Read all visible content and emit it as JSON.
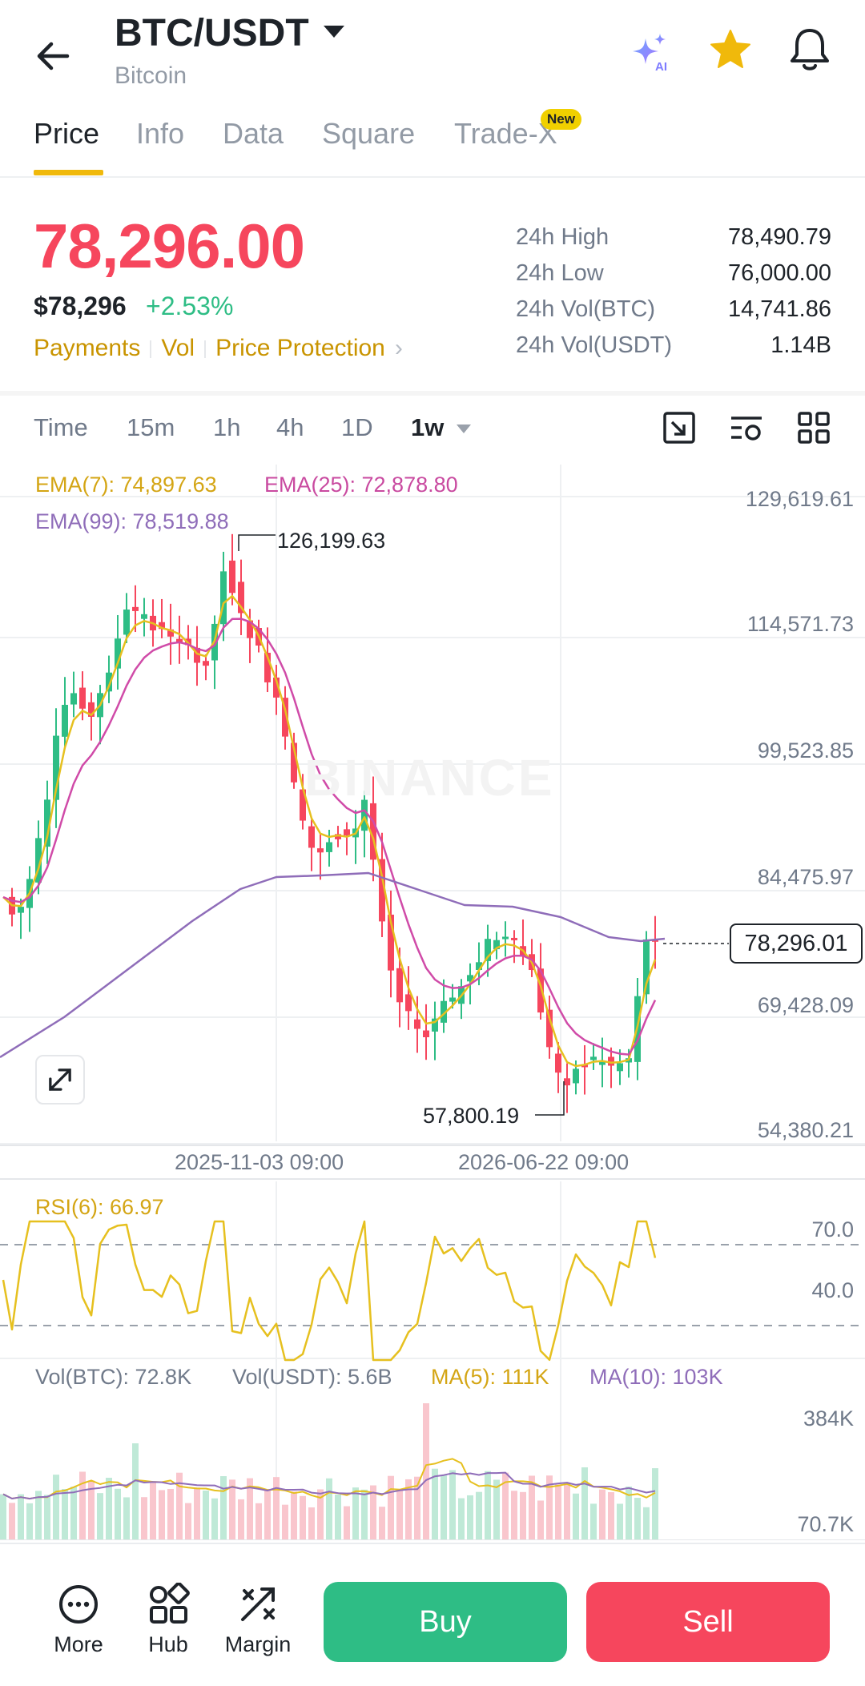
{
  "header": {
    "pair": "BTC/USDT",
    "subtitle": "Bitcoin",
    "icons": [
      "back-arrow-icon",
      "ai-sparkle-icon",
      "star-icon",
      "bell-icon"
    ]
  },
  "tabs": [
    {
      "label": "Price",
      "active": true
    },
    {
      "label": "Info",
      "active": false
    },
    {
      "label": "Data",
      "active": false
    },
    {
      "label": "Square",
      "active": false
    },
    {
      "label": "Trade-X",
      "active": false,
      "badge": "New"
    }
  ],
  "price": {
    "last": "78,296.00",
    "usd": "$78,296",
    "change_pct": "+2.53%",
    "links": [
      "Payments",
      "Vol",
      "Price Protection"
    ]
  },
  "stats": [
    {
      "label": "24h High",
      "value": "78,490.79"
    },
    {
      "label": "24h Low",
      "value": "76,000.00"
    },
    {
      "label": "24h Vol(BTC)",
      "value": "14,741.86"
    },
    {
      "label": "24h Vol(USDT)",
      "value": "1.14B"
    }
  ],
  "intervals": [
    "Time",
    "15m",
    "1h",
    "4h",
    "1D",
    "1w"
  ],
  "active_interval": "1w",
  "chart": {
    "ema7": "EMA(7): 74,897.63",
    "ema25": "EMA(25): 72,878.80",
    "ema99": "EMA(99): 78,519.88",
    "y_axis": [
      "129,619.61",
      "114,571.73",
      "99,523.85",
      "84,475.97",
      "69,428.09",
      "54,380.21"
    ],
    "high_marker": "126,199.63",
    "low_marker": "57,800.19",
    "current_price_tag": "78,296.01",
    "dates": [
      "2025-11-03 09:00",
      "2026-06-22 09:00"
    ],
    "watermark": "BINANCE",
    "rsi_label": "RSI(6): 66.97",
    "rsi_levels": [
      "70.0",
      "40.0"
    ],
    "vol_btc": "Vol(BTC): 72.8K",
    "vol_usdt": "Vol(USDT): 5.6B",
    "vol_ma5": "MA(5): 111K",
    "vol_ma10": "MA(10): 103K",
    "vol_axis": [
      "384K",
      "70.7K"
    ]
  },
  "colors": {
    "up": "#2ebd85",
    "down": "#f6465d",
    "ema7": "#e6c01f",
    "ema25": "#d04ba8",
    "ema99": "#8f6db9",
    "accent": "#f0b90b"
  },
  "bottom_nav": [
    {
      "label": "More",
      "icon": "more-dots-icon"
    },
    {
      "label": "Hub",
      "icon": "hub-grid-icon"
    },
    {
      "label": "Margin",
      "icon": "margin-icon"
    }
  ],
  "actions": {
    "buy": "Buy",
    "sell": "Sell"
  }
}
